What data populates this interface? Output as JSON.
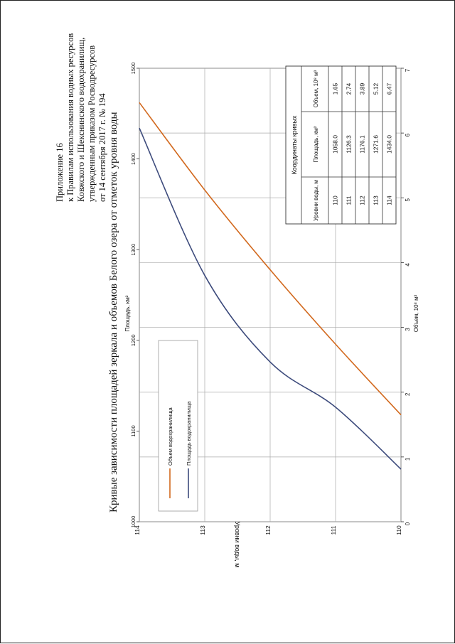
{
  "header": {
    "lines": [
      "Приложение 16",
      "к Правилам использования водных ресурсов",
      "Ковжского и Шекснинского водохранилищ,",
      "утвержденным приказом Росводресурсов",
      "от 14 сентября 2017 г. № 194"
    ]
  },
  "title": "Кривые зависимости площадей зеркала и объемов Белого озера от отметок уровня воды",
  "chart_data": {
    "type": "line",
    "y_axis": {
      "label": "Уровни воды, м",
      "range": [
        110,
        114
      ],
      "ticks": [
        "110",
        "111",
        "112",
        "113",
        "114"
      ]
    },
    "x_axis_bottom": {
      "label": "Объем, 10⁸ м³",
      "range": [
        0,
        7
      ],
      "ticks": [
        "0",
        "1",
        "2",
        "3",
        "4",
        "5",
        "6",
        "7"
      ]
    },
    "x_axis_top": {
      "label": "Площадь, км²",
      "range": [
        1000,
        1500
      ],
      "ticks": [
        "1000",
        "1100",
        "1200",
        "1300",
        "1400",
        "1500"
      ]
    },
    "grid": true,
    "legend_position": "upper-left",
    "series": [
      {
        "name": "Объем водохранилища",
        "color": "#d2691e",
        "axis": "bottom",
        "points": [
          [
            1.65,
            110
          ],
          [
            2.74,
            111
          ],
          [
            3.89,
            112
          ],
          [
            5.12,
            113
          ],
          [
            6.47,
            114
          ]
        ]
      },
      {
        "name": "Площадь водохранилища",
        "color": "#3d4b7c",
        "axis": "top",
        "points": [
          [
            1058.0,
            110
          ],
          [
            1126.3,
            111
          ],
          [
            1176.1,
            112
          ],
          [
            1271.6,
            113
          ],
          [
            1434.0,
            114
          ]
        ]
      }
    ],
    "table": {
      "title": "Координаты кривых",
      "headers": [
        "Уровни воды, м",
        "Площадь, км²",
        "Объем, 10⁸ м³"
      ],
      "rows": [
        [
          "110",
          "1058.0",
          "1.65"
        ],
        [
          "111",
          "1126.3",
          "2.74"
        ],
        [
          "112",
          "1176.1",
          "3.89"
        ],
        [
          "113",
          "1271.6",
          "5.12"
        ],
        [
          "114",
          "1434.0",
          "6.47"
        ]
      ]
    }
  }
}
